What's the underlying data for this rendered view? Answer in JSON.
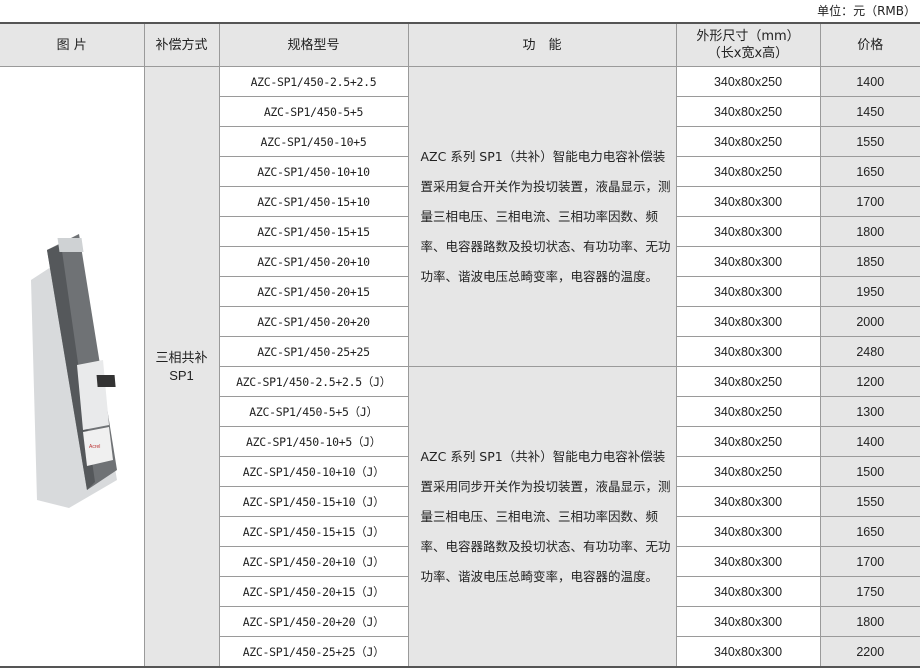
{
  "unit_note": "单位：元（RMB）",
  "headers": {
    "image": "图 片",
    "mode": "补偿方式",
    "model": "规格型号",
    "function": "功　能",
    "dims_line1": "外形尺寸（mm）",
    "dims_line2": "（长x宽x高）",
    "price": "价格"
  },
  "mode": {
    "line1": "三相共补",
    "line2": "SP1"
  },
  "functions": [
    "AZC 系列 SP1（共补）智能电力电容补偿装置采用复合开关作为投切装置，液晶显示，测量三相电压、三相电流、三相功率因数、频率、电容器路数及投切状态、有功功率、无功功率、谐波电压总畸变率，电容器的温度。",
    "AZC 系列 SP1（共补）智能电力电容补偿装置采用同步开关作为投切装置，液晶显示，测量三相电压、三相电流、三相功率因数、频率、电容器路数及投切状态、有功功率、无功功率、谐波电压总畸变率，电容器的温度。"
  ],
  "rows": [
    {
      "model": "AZC-SP1/450-2.5+2.5",
      "dims": "340x80x250",
      "price": "1400"
    },
    {
      "model": "AZC-SP1/450-5+5",
      "dims": "340x80x250",
      "price": "1450"
    },
    {
      "model": "AZC-SP1/450-10+5",
      "dims": "340x80x250",
      "price": "1550"
    },
    {
      "model": "AZC-SP1/450-10+10",
      "dims": "340x80x250",
      "price": "1650"
    },
    {
      "model": "AZC-SP1/450-15+10",
      "dims": "340x80x300",
      "price": "1700"
    },
    {
      "model": "AZC-SP1/450-15+15",
      "dims": "340x80x300",
      "price": "1800"
    },
    {
      "model": "AZC-SP1/450-20+10",
      "dims": "340x80x300",
      "price": "1850"
    },
    {
      "model": "AZC-SP1/450-20+15",
      "dims": "340x80x300",
      "price": "1950"
    },
    {
      "model": "AZC-SP1/450-20+20",
      "dims": "340x80x300",
      "price": "2000"
    },
    {
      "model": "AZC-SP1/450-25+25",
      "dims": "340x80x300",
      "price": "2480"
    },
    {
      "model": "AZC-SP1/450-2.5+2.5（J）",
      "dims": "340x80x250",
      "price": "1200"
    },
    {
      "model": "AZC-SP1/450-5+5（J）",
      "dims": "340x80x250",
      "price": "1300"
    },
    {
      "model": "AZC-SP1/450-10+5（J）",
      "dims": "340x80x250",
      "price": "1400"
    },
    {
      "model": "AZC-SP1/450-10+10（J）",
      "dims": "340x80x250",
      "price": "1500"
    },
    {
      "model": "AZC-SP1/450-15+10（J）",
      "dims": "340x80x300",
      "price": "1550"
    },
    {
      "model": "AZC-SP1/450-15+15（J）",
      "dims": "340x80x300",
      "price": "1650"
    },
    {
      "model": "AZC-SP1/450-20+10（J）",
      "dims": "340x80x300",
      "price": "1700"
    },
    {
      "model": "AZC-SP1/450-20+15（J）",
      "dims": "340x80x300",
      "price": "1750"
    },
    {
      "model": "AZC-SP1/450-20+20（J）",
      "dims": "340x80x300",
      "price": "1800"
    },
    {
      "model": "AZC-SP1/450-25+25（J）",
      "dims": "340x80x300",
      "price": "2200"
    }
  ],
  "product_logo_text": "Acrel"
}
